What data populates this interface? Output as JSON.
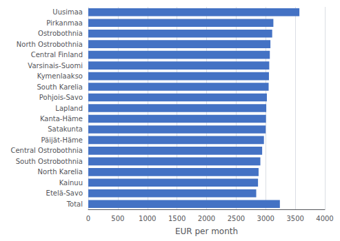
{
  "chart_data": {
    "type": "bar",
    "orientation": "horizontal",
    "categories": [
      "Uusimaa",
      "Pirkanmaa",
      "Ostrobothnia",
      "North Ostrobothnia",
      "Central Finland",
      "Varsinais-Suomi",
      "Kymenlaakso",
      "South Karelia",
      "Pohjois-Savo",
      "Lapland",
      "Kanta-Häme",
      "Satakunta",
      "Päijät-Häme",
      "Central Ostrobothnia",
      "South Ostrobothnia",
      "North Karelia",
      "Kainuu",
      "Etelä-Savo",
      "Total"
    ],
    "values": [
      3570,
      3130,
      3110,
      3080,
      3070,
      3060,
      3055,
      3050,
      3020,
      3010,
      3005,
      3000,
      2970,
      2940,
      2910,
      2880,
      2870,
      2840,
      3240
    ],
    "color": "#4472C4",
    "xlabel": "EUR per month",
    "xlim": [
      0,
      4000
    ],
    "xticks": [
      0,
      500,
      1000,
      1500,
      2000,
      2500,
      3000,
      3500,
      4000
    ],
    "grid": true
  }
}
